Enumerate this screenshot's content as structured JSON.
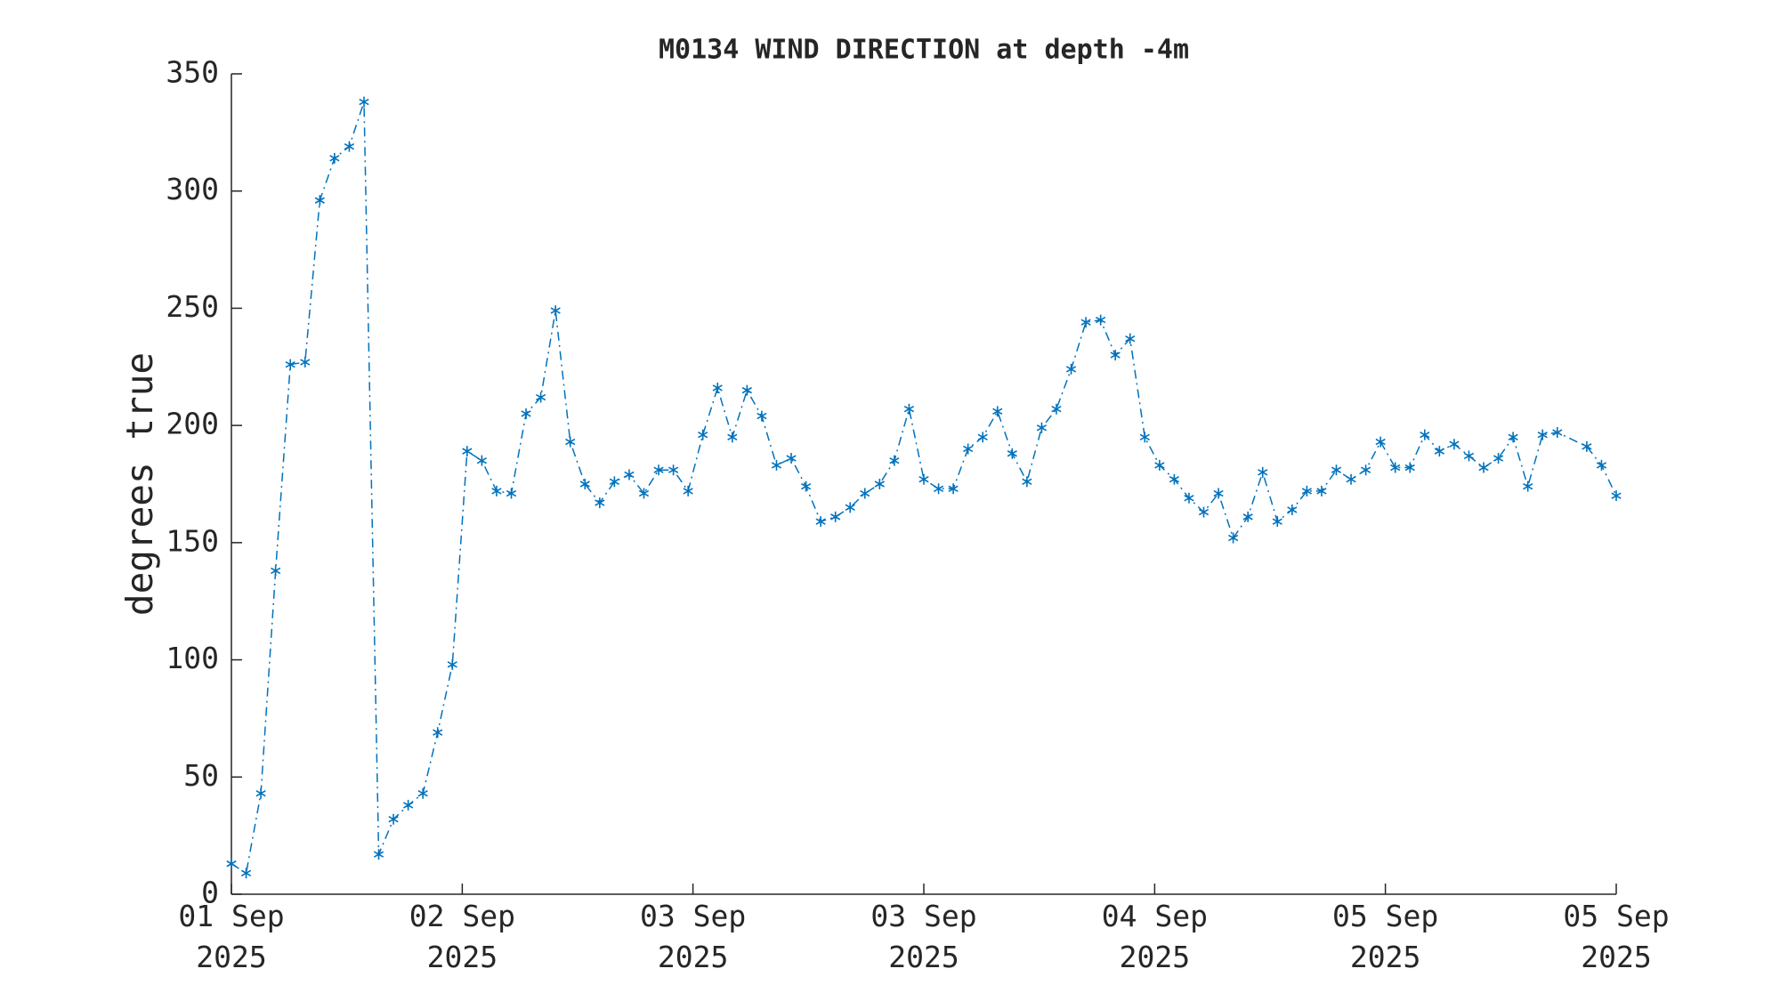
{
  "chart_data": {
    "type": "line",
    "title": "M0134 WIND DIRECTION at depth -4m",
    "y_label": "degrees true",
    "x": [
      0,
      1,
      2,
      3,
      4,
      5,
      6,
      7,
      8,
      9,
      10,
      11,
      12,
      13,
      14,
      15,
      16,
      17,
      18,
      19,
      20,
      21,
      22,
      23,
      24,
      25,
      26,
      27,
      28,
      29,
      30,
      31,
      32,
      33,
      34,
      35,
      36,
      37,
      38,
      39,
      40,
      41,
      42,
      43,
      44,
      45,
      46,
      47,
      48,
      49,
      50,
      51,
      52,
      53,
      54,
      55,
      56,
      57,
      58,
      59,
      60,
      61,
      62,
      63,
      64,
      65,
      66,
      67,
      68,
      69,
      70,
      71,
      72,
      73,
      74,
      75,
      76,
      77,
      78,
      79,
      80,
      81,
      82,
      83,
      84,
      85,
      86,
      87,
      88,
      89,
      90,
      92,
      93,
      94
    ],
    "series": [
      {
        "name": "wind direction",
        "color": "#0072bd",
        "values": [
          13,
          9,
          43,
          138,
          226,
          227,
          296,
          314,
          319,
          338,
          17,
          32,
          38,
          43,
          69,
          98,
          189,
          185,
          172,
          171,
          205,
          212,
          249,
          193,
          175,
          167,
          176,
          179,
          171,
          181,
          181,
          172,
          196,
          216,
          195,
          215,
          204,
          183,
          186,
          174,
          159,
          161,
          165,
          171,
          175,
          185,
          207,
          177,
          173,
          173,
          190,
          195,
          206,
          188,
          176,
          199,
          207,
          224,
          244,
          245,
          230,
          237,
          195,
          183,
          177,
          169,
          163,
          171,
          152,
          161,
          180,
          159,
          164,
          172,
          172,
          181,
          177,
          181,
          193,
          182,
          182,
          196,
          189,
          192,
          187,
          182,
          186,
          195,
          174,
          196,
          197,
          191,
          183,
          170
        ]
      }
    ],
    "xlim": [
      0,
      94
    ],
    "xticks": [
      {
        "value": 0,
        "label": "01 Sep\n2025"
      },
      {
        "value": 15.67,
        "label": "02 Sep\n2025"
      },
      {
        "value": 31.33,
        "label": "03 Sep\n2025"
      },
      {
        "value": 47,
        "label": "03 Sep\n2025"
      },
      {
        "value": 62.67,
        "label": "04 Sep\n2025"
      },
      {
        "value": 78.33,
        "label": "05 Sep\n2025"
      },
      {
        "value": 94,
        "label": "05 Sep\n2025"
      }
    ],
    "ylim": [
      0,
      350
    ],
    "yticks": [
      0,
      50,
      100,
      150,
      200,
      250,
      300,
      350
    ],
    "grid": false
  }
}
